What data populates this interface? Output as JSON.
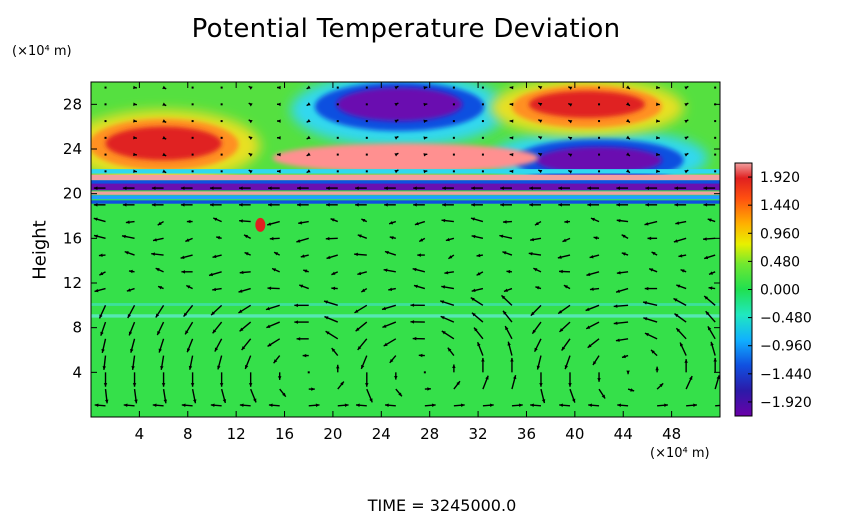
{
  "chart_data": {
    "type": "heatmap",
    "title": "Potential Temperature Deviation",
    "ylabel": "Height",
    "y_unit": "(×10⁴ m)",
    "x_unit": "(×10⁴ m)",
    "xlim": [
      0,
      52
    ],
    "ylim": [
      0,
      30
    ],
    "xticks": [
      "4",
      "8",
      "12",
      "16",
      "20",
      "24",
      "28",
      "32",
      "36",
      "40",
      "44",
      "48"
    ],
    "yticks": [
      "4",
      "8",
      "12",
      "16",
      "20",
      "24",
      "28"
    ],
    "colorbar": {
      "range": [
        -2.16,
        2.16
      ],
      "ticks": [
        "1.920",
        "1.440",
        "0.960",
        "0.480",
        "0.000",
        "−0.480",
        "−0.960",
        "−1.440",
        "−1.920"
      ]
    },
    "features": [
      {
        "kind": "warm anomaly",
        "x": 5.5,
        "y": 24.5,
        "value": 1.9
      },
      {
        "kind": "cold anomaly",
        "x": 25.5,
        "y": 28,
        "value": -1.9
      },
      {
        "kind": "warm anomaly",
        "x": 41,
        "y": 28,
        "value": 1.9
      },
      {
        "kind": "cold anomaly",
        "x": 42,
        "y": 23,
        "value": -1.9
      },
      {
        "kind": "warm band",
        "x": 26,
        "y": 23.5,
        "value": 1.5
      }
    ],
    "grid": false
  },
  "footer": {
    "time_label": "TIME  =  3245000.0"
  }
}
